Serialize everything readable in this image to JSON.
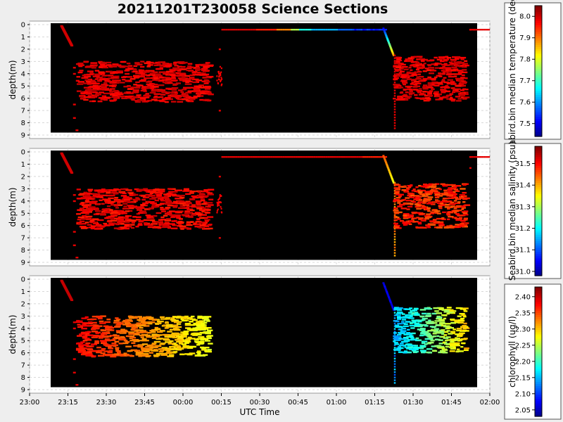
{
  "title": "20211201T230058 Science Sections",
  "chart_data": {
    "type": "heatmap",
    "title": "20211201T230058 Science Sections",
    "xlabel": "UTC Time",
    "x_ticks": [
      "23:00",
      "23:15",
      "23:30",
      "23:45",
      "00:00",
      "00:15",
      "00:30",
      "00:45",
      "01:00",
      "01:15",
      "01:30",
      "01:45",
      "02:00"
    ],
    "xlim": [
      "23:00",
      "02:00"
    ],
    "grid": true,
    "panels": [
      {
        "ylabel": "depth(m)",
        "ylim": [
          9,
          0
        ],
        "y_ticks": [
          0,
          1,
          2,
          3,
          4,
          5,
          6,
          7,
          8,
          9
        ],
        "colorbar_label": "Seabird.bin median temperature (degC)",
        "colorbar_ticks": [
          7.5,
          7.6,
          7.7,
          7.8,
          7.9,
          8.0
        ],
        "colorbar_range": [
          7.44,
          8.05
        ],
        "colors": {
          "low": "#00008f",
          "high": "#800000"
        }
      },
      {
        "ylabel": "depth(m)",
        "ylim": [
          9,
          0
        ],
        "y_ticks": [
          0,
          1,
          2,
          3,
          4,
          5,
          6,
          7,
          8,
          9
        ],
        "colorbar_label": "Seabird.bin median salinity (psu)",
        "colorbar_ticks": [
          31.0,
          31.1,
          31.2,
          31.3,
          31.4,
          31.5
        ],
        "colorbar_range": [
          30.98,
          31.58
        ],
        "colors": {
          "low": "#00008f",
          "high": "#800000"
        }
      },
      {
        "ylabel": "depth(m)",
        "ylim": [
          9,
          0
        ],
        "y_ticks": [
          0,
          1,
          2,
          3,
          4,
          5,
          6,
          7,
          8,
          9
        ],
        "colorbar_label": "chlorophyll (ug/l)",
        "colorbar_ticks": [
          2.05,
          2.1,
          2.15,
          2.2,
          2.25,
          2.3,
          2.35,
          2.4
        ],
        "colorbar_range": [
          2.03,
          2.43
        ],
        "colors": {
          "low": "#00008f",
          "high": "#800000"
        }
      }
    ]
  }
}
